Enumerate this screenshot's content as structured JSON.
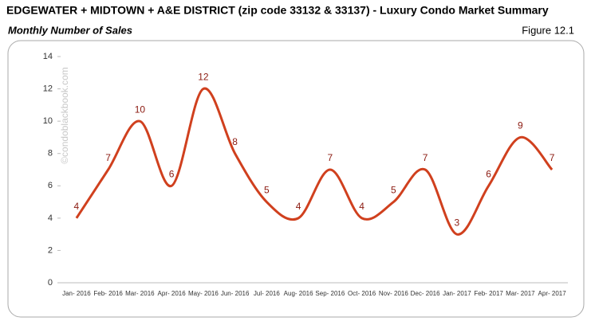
{
  "chart_data": {
    "type": "line",
    "title": "EDGEWATER + MIDTOWN + A&E DISTRICT (zip code 33132 & 33137) - Luxury Condo Market Summary",
    "subtitle": "Monthly Number of Sales",
    "figure_label": "Figure 12.1",
    "watermark": "©condoblackbook.com",
    "categories": [
      "Jan- 2016",
      "Feb- 2016",
      "Mar- 2016",
      "Apr- 2016",
      "May- 2016",
      "Jun- 2016",
      "Jul- 2016",
      "Aug- 2016",
      "Sep- 2016",
      "Oct- 2016",
      "Nov- 2016",
      "Dec- 2016",
      "Jan- 2017",
      "Feb- 2017",
      "Mar- 2017",
      "Apr- 2017"
    ],
    "values": [
      4,
      7,
      10,
      6,
      12,
      8,
      5,
      4,
      7,
      4,
      5,
      7,
      3,
      6,
      9,
      7
    ],
    "color": "#d0401e",
    "label_color": "#8b1a10",
    "ylim": [
      0,
      14
    ],
    "yticks": [
      0,
      2,
      4,
      6,
      8,
      10,
      12,
      14
    ],
    "smooth": true,
    "grid": false
  }
}
